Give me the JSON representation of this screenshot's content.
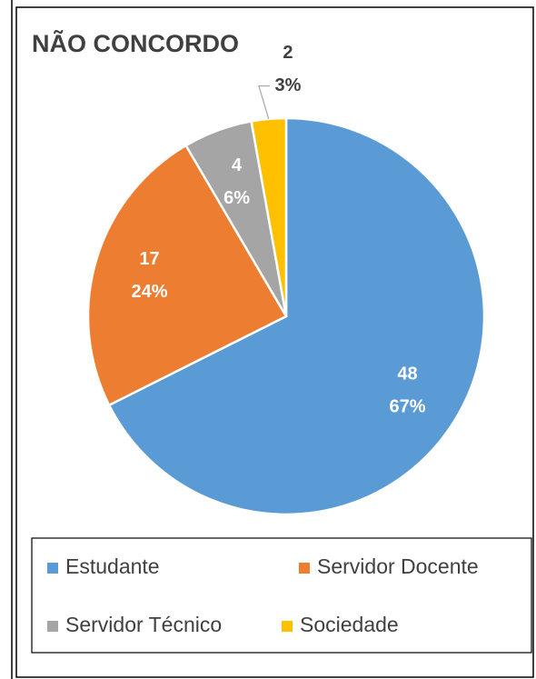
{
  "chart_data": {
    "type": "pie",
    "title": "NÃO CONCORDO",
    "categories": [
      "Estudante",
      "Servidor Docente",
      "Servidor Técnico",
      "Sociedade"
    ],
    "values": [
      48,
      17,
      4,
      2
    ],
    "percentages": [
      67,
      24,
      6,
      3
    ],
    "percentage_labels": [
      "67%",
      "24%",
      "6%",
      "3%"
    ],
    "colors": [
      "#5b9bd5",
      "#ed7d31",
      "#a5a5a5",
      "#ffc000"
    ],
    "legend": "bottom"
  }
}
